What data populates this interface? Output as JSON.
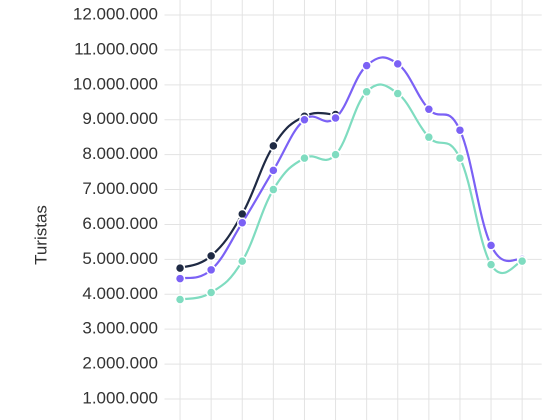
{
  "chart_data": {
    "type": "line",
    "y_label": "Turistas",
    "categories": [
      null,
      null,
      null,
      null,
      null,
      null,
      null,
      null,
      null,
      null,
      null,
      null
    ],
    "series": [
      {
        "name": null,
        "color": "#1f2a44",
        "values": [
          4750000,
          5100000,
          6300000,
          8250000,
          9100000,
          9150000,
          null,
          null,
          null,
          null,
          null,
          null
        ]
      },
      {
        "name": null,
        "color": "#7b61f5",
        "values": [
          4450000,
          4700000,
          6050000,
          7550000,
          9000000,
          9050000,
          10550000,
          10600000,
          9300000,
          8700000,
          5400000,
          5000000
        ]
      },
      {
        "name": null,
        "color": "#7fdcc0",
        "values": [
          3850000,
          4050000,
          4950000,
          7000000,
          7900000,
          8000000,
          9800000,
          9750000,
          8500000,
          7900000,
          4850000,
          4950000
        ]
      }
    ],
    "ylim": [
      1000000,
      12000000
    ],
    "yticks": [
      {
        "value": 1000000,
        "label": "1.000.000"
      },
      {
        "value": 2000000,
        "label": "2.000.000"
      },
      {
        "value": 3000000,
        "label": "3.000.000"
      },
      {
        "value": 4000000,
        "label": "4.000.000"
      },
      {
        "value": 5000000,
        "label": "5.000.000"
      },
      {
        "value": 6000000,
        "label": "6.000.000"
      },
      {
        "value": 7000000,
        "label": "7.000.000"
      },
      {
        "value": 8000000,
        "label": "8.000.000"
      },
      {
        "value": 9000000,
        "label": "9.000.000"
      },
      {
        "value": 10000000,
        "label": "10.000.000"
      },
      {
        "value": 11000000,
        "label": "11.000.000"
      },
      {
        "value": 12000000,
        "label": "12.000.000"
      }
    ],
    "grid": true
  }
}
